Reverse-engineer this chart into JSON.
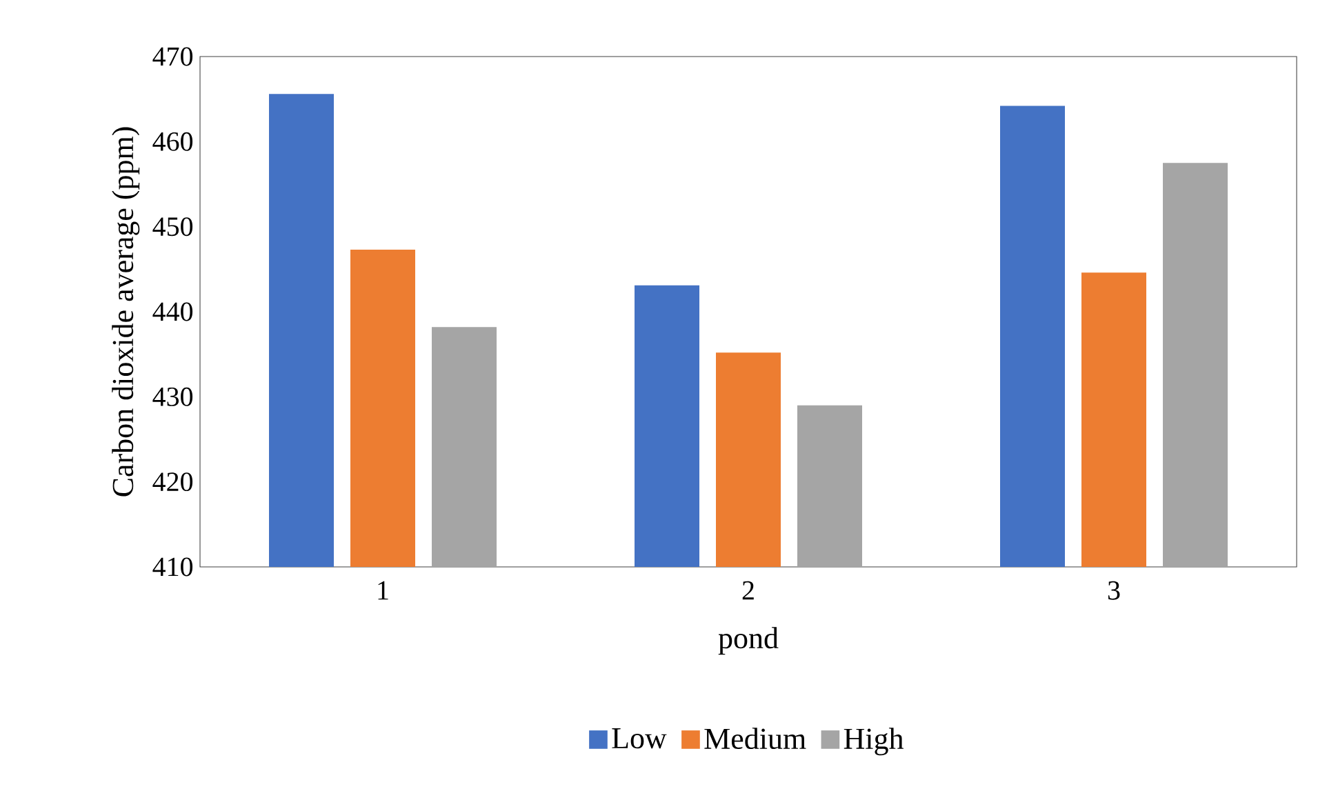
{
  "chart_data": {
    "type": "bar",
    "xlabel": "pond",
    "ylabel": "Carbon dioxide average (ppm)",
    "categories": [
      "1",
      "2",
      "3"
    ],
    "series": [
      {
        "name": "Low",
        "color": "#4472c4",
        "values": [
          465.6,
          443.1,
          464.2
        ]
      },
      {
        "name": "Medium",
        "color": "#ed7d31",
        "values": [
          447.3,
          435.2,
          444.6
        ]
      },
      {
        "name": "High",
        "color": "#a5a5a5",
        "values": [
          438.2,
          429.0,
          457.5
        ]
      }
    ],
    "ylim": [
      410,
      470
    ],
    "yticks": [
      410,
      420,
      430,
      440,
      450,
      460,
      470
    ],
    "grid": false,
    "legend": "bottom"
  }
}
